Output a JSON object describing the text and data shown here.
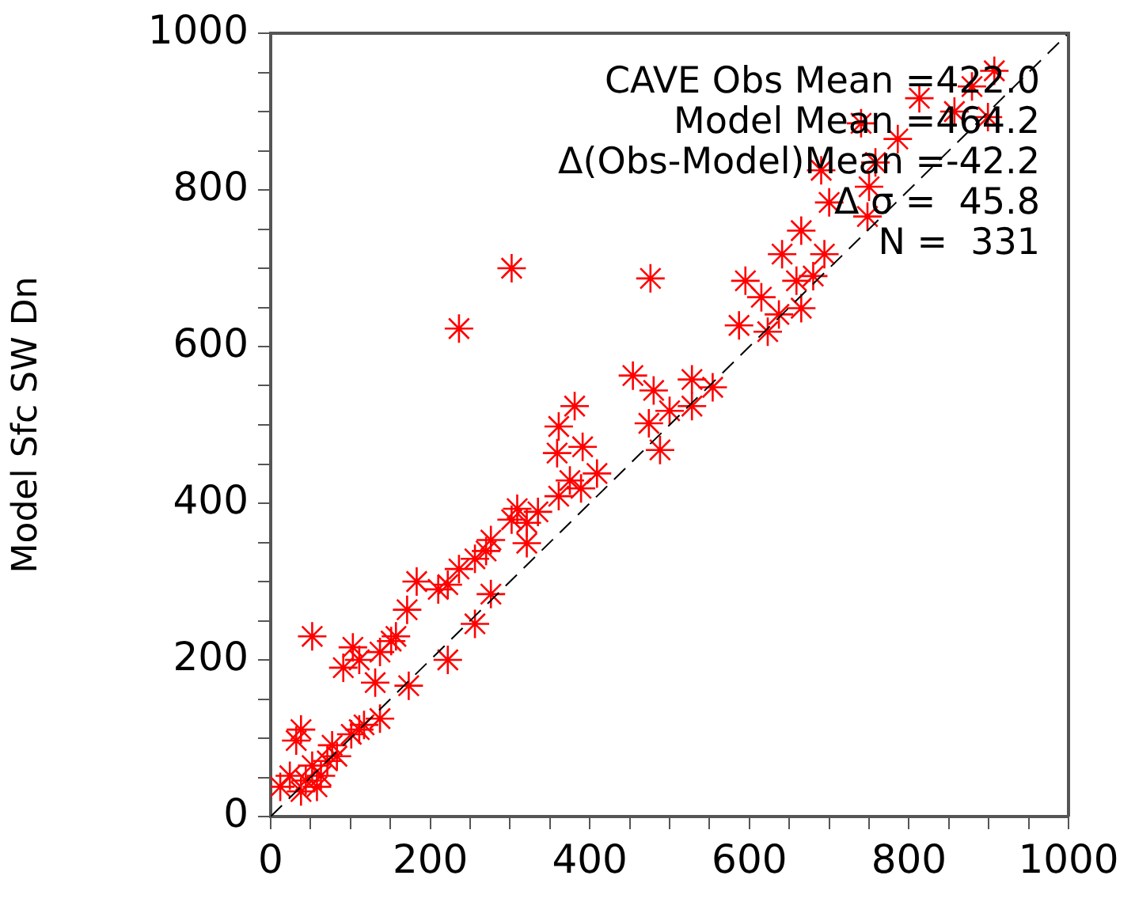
{
  "chart_data": {
    "type": "scatter",
    "ylabel": "Model Sfc SW Dn",
    "xlim": [
      0,
      1000
    ],
    "ylim": [
      0,
      1000
    ],
    "xticks": [
      0,
      {
        "value": 50,
        "label": null
      },
      {
        "value": 100,
        "label": null
      },
      {
        "value": 150,
        "label": null
      },
      200,
      {
        "value": 250,
        "label": null
      },
      {
        "value": 300,
        "label": null
      },
      {
        "value": 350,
        "label": null
      },
      400,
      {
        "value": 450,
        "label": null
      },
      {
        "value": 500,
        "label": null
      },
      {
        "value": 550,
        "label": null
      },
      600,
      {
        "value": 650,
        "label": null
      },
      {
        "value": 700,
        "label": null
      },
      {
        "value": 750,
        "label": null
      },
      800,
      {
        "value": 850,
        "label": null
      },
      {
        "value": 900,
        "label": null
      },
      {
        "value": 950,
        "label": null
      },
      1000
    ],
    "yticks": [
      0,
      {
        "value": 50,
        "label": null
      },
      {
        "value": 100,
        "label": null
      },
      {
        "value": 150,
        "label": null
      },
      200,
      {
        "value": 250,
        "label": null
      },
      {
        "value": 300,
        "label": null
      },
      {
        "value": 350,
        "label": null
      },
      400,
      {
        "value": 450,
        "label": null
      },
      {
        "value": 500,
        "label": null
      },
      {
        "value": 550,
        "label": null
      },
      600,
      {
        "value": 650,
        "label": null
      },
      {
        "value": 700,
        "label": null
      },
      {
        "value": 750,
        "label": null
      },
      800,
      {
        "value": 850,
        "label": null
      },
      {
        "value": 900,
        "label": null
      },
      {
        "value": 950,
        "label": null
      },
      1000
    ],
    "grid": false,
    "legend": false,
    "marker": "cross",
    "series": [
      {
        "type": "line",
        "color": "#000000",
        "line_style": "dashed",
        "marker": "none",
        "x": [
          0,
          1000
        ],
        "values": [
          0,
          1000
        ]
      },
      {
        "color": "#ff0000",
        "x": [
          302,
          236,
          476,
          907,
          879,
          813,
          857,
          899,
          740,
          786,
          758,
          690,
          750,
          700,
          748,
          665,
          694,
          641,
          659,
          680,
          595,
          615,
          637,
          665,
          623,
          587,
          454,
          480,
          528,
          474,
          500,
          488,
          528,
          554,
          381,
          361,
          391,
          359,
          409,
          375,
          389,
          361,
          309,
          335,
          321,
          302,
          321,
          276,
          270,
          256,
          236,
          222,
          210,
          183,
          276,
          256,
          222,
          171,
          157,
          137,
          103,
          111,
          91,
          131,
          173,
          151,
          52,
          117,
          101,
          77,
          32,
          38,
          52,
          71,
          44,
          24,
          12,
          63,
          83,
          38,
          58,
          137,
          111
        ],
        "values": [
          700,
          623,
          687,
          952,
          932,
          917,
          900,
          893,
          885,
          865,
          835,
          825,
          804,
          784,
          766,
          748,
          718,
          718,
          684,
          690,
          684,
          663,
          641,
          649,
          619,
          627,
          563,
          544,
          558,
          502,
          518,
          468,
          524,
          548,
          524,
          498,
          472,
          464,
          438,
          429,
          419,
          409,
          393,
          389,
          375,
          379,
          349,
          353,
          339,
          329,
          316,
          296,
          290,
          300,
          284,
          246,
          200,
          264,
          230,
          210,
          216,
          200,
          190,
          171,
          167,
          224,
          230,
          117,
          105,
          91,
          97,
          111,
          65,
          71,
          46,
          52,
          38,
          52,
          77,
          32,
          38,
          125,
          111
        ]
      }
    ],
    "annotations": [
      "CAVE Obs Mean =422.0",
      "Model Mean =464.2",
      "Δ(Obs-Model)Mean =-42.2",
      "Δ σ =  45.8",
      "N =  331"
    ]
  }
}
